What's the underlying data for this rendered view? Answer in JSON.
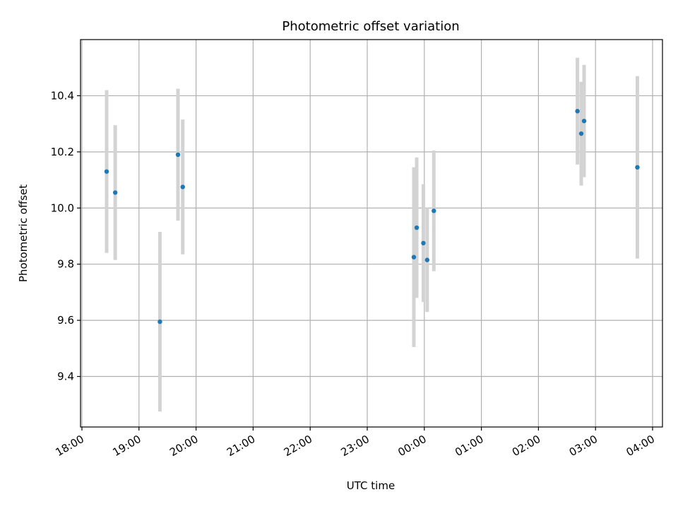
{
  "chart_data": {
    "type": "scatter",
    "title": "Photometric offset variation",
    "xlabel": "UTC time",
    "ylabel": "Photometric offset",
    "xlim": [
      "18:00",
      "04:10"
    ],
    "ylim": [
      9.22,
      10.6
    ],
    "xticks": [
      "18:00",
      "19:00",
      "20:00",
      "21:00",
      "22:00",
      "23:00",
      "00:00",
      "01:00",
      "02:00",
      "03:00",
      "04:00"
    ],
    "yticks": [
      9.4,
      9.6,
      9.8,
      10.0,
      10.2,
      10.4
    ],
    "ytick_labels": [
      "9.4",
      "9.6",
      "9.8",
      "10.0",
      "10.2",
      "10.4"
    ],
    "grid": true,
    "marker_color": "#1f77b4",
    "errorbar_color": "#d3d3d3",
    "points": [
      {
        "time": "18:26",
        "y": 10.13,
        "yerr": 0.29
      },
      {
        "time": "18:35",
        "y": 10.055,
        "yerr": 0.24
      },
      {
        "time": "19:22",
        "y": 9.595,
        "yerr": 0.32
      },
      {
        "time": "19:41",
        "y": 10.19,
        "yerr": 0.235
      },
      {
        "time": "19:46",
        "y": 10.075,
        "yerr": 0.24
      },
      {
        "time": "23:49",
        "y": 9.825,
        "yerr": 0.32
      },
      {
        "time": "23:52",
        "y": 9.93,
        "yerr": 0.25
      },
      {
        "time": "23:59",
        "y": 9.875,
        "yerr": 0.21
      },
      {
        "time": "00:03",
        "y": 9.815,
        "yerr": 0.185
      },
      {
        "time": "00:10",
        "y": 9.99,
        "yerr": 0.215
      },
      {
        "time": "02:41",
        "y": 10.345,
        "yerr": 0.19
      },
      {
        "time": "02:45",
        "y": 10.265,
        "yerr": 0.185
      },
      {
        "time": "02:48",
        "y": 10.31,
        "yerr": 0.2
      },
      {
        "time": "03:44",
        "y": 10.145,
        "yerr": 0.325
      }
    ]
  }
}
